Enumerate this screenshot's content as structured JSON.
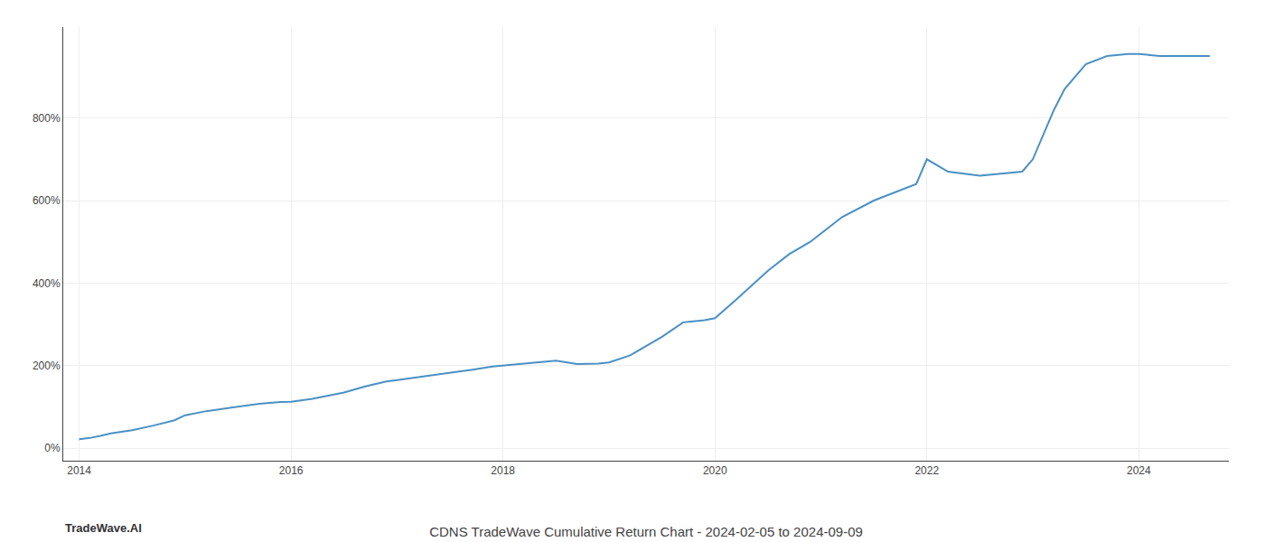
{
  "chart_data": {
    "type": "line",
    "title": "CDNS TradeWave Cumulative Return Chart - 2024-02-05 to 2024-09-09",
    "annotations": [
      {
        "text": "TradeWave.AI"
      }
    ],
    "color": "#4a90c4",
    "grid": true,
    "xlim": [
      2013.85,
      2024.85
    ],
    "xticks": [
      2014,
      2016,
      2018,
      2020,
      2022,
      2024
    ],
    "ylim": [
      -30,
      1020
    ],
    "yticks": [
      {
        "value": 0,
        "label": "0%"
      },
      {
        "value": 200,
        "label": "200%"
      },
      {
        "value": 400,
        "label": "400%"
      },
      {
        "value": 600,
        "label": "600%"
      },
      {
        "value": 800,
        "label": "800%"
      }
    ],
    "x": [
      2014.0,
      2014.1,
      2014.2,
      2014.3,
      2014.5,
      2014.7,
      2014.9,
      2015.0,
      2015.2,
      2015.5,
      2015.7,
      2015.9,
      2016.0,
      2016.2,
      2016.5,
      2016.7,
      2016.9,
      2017.0,
      2017.2,
      2017.5,
      2017.7,
      2017.9,
      2018.0,
      2018.2,
      2018.5,
      2018.7,
      2018.9,
      2019.0,
      2019.2,
      2019.5,
      2019.7,
      2019.9,
      2020.0,
      2020.2,
      2020.5,
      2020.7,
      2020.9,
      2021.0,
      2021.2,
      2021.5,
      2021.7,
      2021.9,
      2022.0,
      2022.2,
      2022.5,
      2022.7,
      2022.9,
      2023.0,
      2023.1,
      2023.2,
      2023.3,
      2023.5,
      2023.7,
      2023.9,
      2024.0,
      2024.2,
      2024.5,
      2024.67
    ],
    "values": [
      22,
      25,
      30,
      36,
      44,
      55,
      68,
      80,
      90,
      100,
      108,
      112,
      113,
      120,
      135,
      150,
      162,
      165,
      172,
      182,
      190,
      198,
      200,
      205,
      212,
      204,
      205,
      208,
      225,
      270,
      305,
      310,
      315,
      360,
      430,
      470,
      500,
      520,
      560,
      600,
      620,
      640,
      700,
      670,
      660,
      665,
      670,
      700,
      760,
      820,
      870,
      930,
      950,
      955,
      955,
      950,
      950,
      950
    ]
  }
}
